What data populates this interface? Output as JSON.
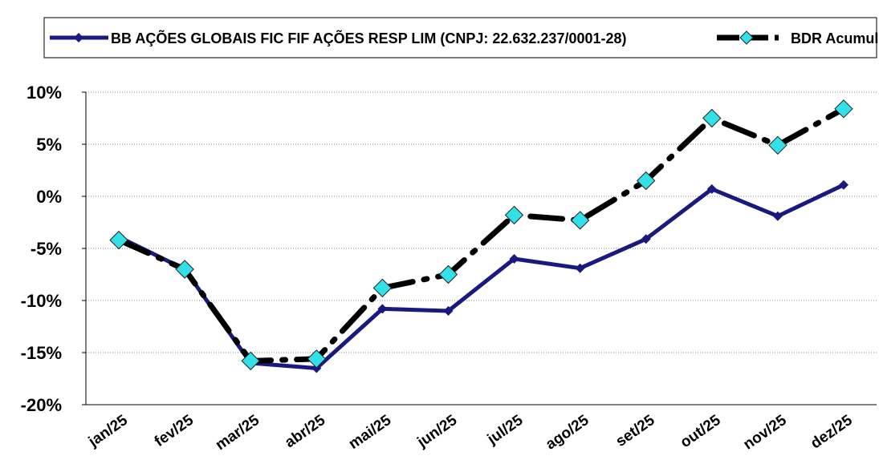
{
  "chart_data": {
    "type": "line",
    "categories": [
      "jan/25",
      "fev/25",
      "mar/25",
      "abr/25",
      "mai/25",
      "jun/25",
      "jul/25",
      "ago/25",
      "set/25",
      "out/25",
      "nov/25",
      "dez/25"
    ],
    "series": [
      {
        "name": "BB AÇÕES GLOBAIS FIC FIF AÇÕES RESP LIM (CNPJ: 22.632.237/0001-28)",
        "color": "#1a1a7e",
        "values": [
          -3.9,
          -7.0,
          -16.0,
          -16.5,
          -10.8,
          -11.0,
          -6.0,
          -6.9,
          -4.1,
          0.7,
          -1.9,
          1.1
        ]
      },
      {
        "name": "BDR Acumul.",
        "color": "#000000",
        "marker_color": "#33e0e8",
        "values": [
          -4.2,
          -7.0,
          -15.8,
          -15.6,
          -8.8,
          -7.5,
          -1.8,
          -2.3,
          1.5,
          7.5,
          4.9,
          8.4
        ]
      }
    ],
    "ylim": [
      -20,
      10
    ],
    "yticks": [
      {
        "value": -20,
        "label": "-20%"
      },
      {
        "value": -15,
        "label": "-15%"
      },
      {
        "value": -10,
        "label": "-10%"
      },
      {
        "value": -5,
        "label": "-5%"
      },
      {
        "value": 0,
        "label": "0%"
      },
      {
        "value": 5,
        "label": "5%"
      },
      {
        "value": 10,
        "label": "10%"
      }
    ],
    "grid": true,
    "legend": "top"
  }
}
